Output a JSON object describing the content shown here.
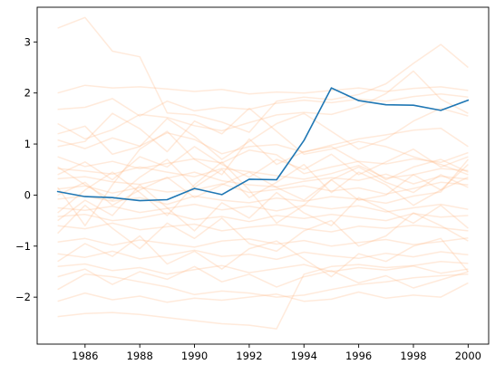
{
  "chart_data": {
    "type": "line",
    "title": "",
    "xlabel": "",
    "ylabel": "",
    "xlim": [
      1984.25,
      2000.75
    ],
    "ylim": [
      -2.92,
      3.68
    ],
    "xticks": [
      1986,
      1988,
      1990,
      1992,
      1994,
      1996,
      1998,
      2000
    ],
    "yticks": [
      -2,
      -1,
      0,
      1,
      2,
      3
    ],
    "grid": false,
    "x": [
      1985,
      1986,
      1987,
      1988,
      1989,
      1990,
      1991,
      1992,
      1993,
      1994,
      1995,
      1996,
      1997,
      1998,
      1999,
      2000
    ],
    "highlight_series": {
      "color": "#1f77b4",
      "values": [
        0.07,
        -0.03,
        -0.05,
        -0.11,
        -0.09,
        0.13,
        0.01,
        0.31,
        0.3,
        1.07,
        2.1,
        1.85,
        1.77,
        1.76,
        1.66,
        1.86
      ]
    },
    "background_series_color": "#ffbb88",
    "background_series": [
      [
        3.27,
        3.48,
        2.82,
        2.71,
        1.61,
        1.57,
        1.43,
        1.23,
        1.84,
        1.92,
        1.87,
        1.97,
        2.18,
        2.58,
        2.95,
        2.5
      ],
      [
        2.0,
        2.15,
        2.1,
        2.12,
        2.08,
        2.03,
        2.07,
        1.98,
        2.02,
        2.0,
        2.05,
        2.1,
        2.03,
        2.09,
        2.12,
        2.05
      ],
      [
        1.68,
        1.72,
        1.89,
        1.55,
        1.84,
        1.65,
        1.72,
        1.68,
        1.8,
        1.86,
        1.81,
        1.88,
        1.84,
        1.93,
        1.98,
        1.92
      ],
      [
        1.4,
        1.1,
        1.28,
        1.58,
        1.52,
        1.36,
        1.26,
        1.42,
        1.57,
        1.62,
        1.58,
        1.73,
        1.99,
        2.43,
        1.88,
        1.6
      ],
      [
        1.08,
        0.91,
        1.12,
        0.96,
        1.22,
        1.09,
        0.81,
        0.95,
        0.99,
        0.84,
        0.98,
        1.1,
        1.18,
        1.27,
        1.31,
        0.95
      ],
      [
        0.75,
        0.56,
        0.66,
        0.52,
        0.62,
        0.71,
        0.63,
        0.88,
        0.79,
        0.42,
        0.55,
        0.66,
        0.61,
        0.71,
        0.64,
        0.83
      ],
      [
        0.52,
        0.47,
        0.41,
        0.55,
        0.45,
        0.36,
        0.52,
        0.46,
        0.38,
        0.31,
        0.42,
        0.58,
        0.33,
        0.4,
        0.52,
        0.48
      ],
      [
        0.32,
        0.36,
        0.26,
        0.21,
        0.33,
        0.45,
        0.28,
        0.2,
        0.16,
        0.27,
        0.34,
        0.29,
        0.41,
        0.22,
        0.37,
        0.31
      ],
      [
        0.12,
        0.18,
        0.04,
        0.15,
        0.06,
        0.1,
        0.22,
        0.05,
        0.11,
        0.18,
        0.08,
        0.14,
        0.02,
        0.13,
        0.25,
        0.2
      ],
      [
        -0.08,
        -0.02,
        -0.12,
        -0.05,
        -0.18,
        -0.02,
        -0.1,
        -0.15,
        -0.06,
        -0.12,
        -0.03,
        -0.08,
        -0.16,
        -0.02,
        0.06,
        0.7
      ],
      [
        -0.25,
        -0.3,
        -0.22,
        -0.34,
        -0.26,
        -0.18,
        -0.29,
        -0.22,
        -0.31,
        -0.2,
        -0.27,
        -0.21,
        -0.33,
        -0.25,
        -0.18,
        -0.28
      ],
      [
        -0.42,
        -0.38,
        -0.5,
        -0.45,
        -0.35,
        -0.48,
        -0.42,
        -0.52,
        -0.4,
        -0.46,
        -0.38,
        -0.44,
        -0.5,
        -0.36,
        -0.43,
        -0.4
      ],
      [
        -0.6,
        -0.66,
        -0.55,
        -0.68,
        -0.62,
        -0.57,
        -0.7,
        -0.63,
        -0.58,
        -0.66,
        -0.72,
        -0.61,
        -0.65,
        -0.59,
        -0.64,
        -0.7
      ],
      [
        -0.92,
        -0.85,
        -0.98,
        -0.88,
        -0.95,
        -1.02,
        -0.9,
        -0.86,
        -0.96,
        -0.89,
        -1.0,
        -0.93,
        -0.87,
        -0.97,
        -0.91,
        -0.84
      ],
      [
        -1.15,
        -1.22,
        -1.1,
        -1.25,
        -1.18,
        -1.08,
        -1.2,
        -1.16,
        -1.26,
        -1.12,
        -1.19,
        -1.24,
        -1.14,
        -1.21,
        -1.11,
        -1.17
      ],
      [
        -1.4,
        -1.35,
        -1.48,
        -1.42,
        -1.55,
        -1.46,
        -1.38,
        -1.52,
        -1.44,
        -1.36,
        -1.5,
        -1.42,
        -1.47,
        -1.39,
        -1.53,
        -1.45
      ],
      [
        -1.85,
        -1.55,
        -1.6,
        -1.7,
        -1.8,
        -1.95,
        -1.88,
        -1.92,
        -2.0,
        -1.96,
        -1.85,
        -1.75,
        -1.7,
        -1.62,
        -1.58,
        -1.55
      ],
      [
        -2.08,
        -1.92,
        -2.05,
        -1.98,
        -2.1,
        -2.02,
        -2.06,
        -2.0,
        -1.94,
        -2.08,
        -2.04,
        -1.9,
        -2.02,
        -1.96,
        -2.0,
        -1.72
      ],
      [
        -2.38,
        -2.32,
        -2.3,
        -2.34,
        -2.4,
        -2.46,
        -2.52,
        -2.55,
        -2.62,
        -1.55,
        -1.4,
        -1.36,
        -1.42,
        -1.38,
        -1.3,
        -1.34
      ],
      [
        0.15,
        -0.6,
        0.2,
        0.9,
        1.25,
        0.7,
        0.4,
        1.1,
        0.6,
        0.85,
        0.95,
        0.65,
        0.3,
        0.55,
        0.7,
        0.45
      ],
      [
        -0.35,
        0.1,
        0.45,
        0.05,
        -0.4,
        0.2,
        0.65,
        0.1,
        -0.55,
        -0.2,
        0.3,
        -0.1,
        0.0,
        0.4,
        0.1,
        0.6
      ],
      [
        0.95,
        1.05,
        1.6,
        1.3,
        0.85,
        1.45,
        1.2,
        1.7,
        1.25,
        0.8,
        0.9,
        1.05,
        0.95,
        0.75,
        0.6,
        0.4
      ],
      [
        -0.75,
        -0.2,
        -0.65,
        -1.05,
        -0.55,
        -0.85,
        -0.45,
        -0.95,
        -1.1,
        -0.7,
        -0.5,
        -1.0,
        -0.8,
        -0.35,
        -0.6,
        -0.9
      ],
      [
        0.55,
        0.2,
        -0.1,
        0.35,
        0.7,
        0.15,
        0.5,
        -0.05,
        0.25,
        0.6,
        0.05,
        0.45,
        0.2,
        -0.2,
        0.1,
        0.35
      ],
      [
        -1.3,
        -0.95,
        -1.2,
        -0.8,
        -1.35,
        -1.1,
        -1.45,
        -1.05,
        -0.9,
        -1.25,
        -1.6,
        -1.15,
        -1.3,
        -1.0,
        -0.85,
        -1.5
      ],
      [
        1.2,
        1.35,
        0.8,
        0.95,
        1.5,
        1.15,
        0.7,
        1.05,
        1.4,
        1.6,
        1.25,
        0.9,
        1.1,
        1.45,
        1.7,
        1.55
      ],
      [
        -0.5,
        -0.1,
        -0.4,
        0.2,
        -0.25,
        -0.7,
        -0.15,
        -0.45,
        0.05,
        -0.35,
        -0.6,
        -0.05,
        -0.3,
        -0.55,
        -0.2,
        -0.65
      ],
      [
        0.4,
        0.65,
        0.3,
        0.75,
        0.55,
        0.95,
        0.6,
        0.35,
        0.7,
        0.5,
        0.8,
        0.4,
        0.65,
        0.9,
        0.55,
        0.75
      ],
      [
        -1.6,
        -1.45,
        -1.75,
        -1.5,
        -1.65,
        -1.4,
        -1.7,
        -1.55,
        -1.8,
        -1.6,
        -1.48,
        -1.72,
        -1.58,
        -1.82,
        -1.66,
        -1.5
      ],
      [
        0.0,
        0.25,
        -0.2,
        0.1,
        0.35,
        -0.05,
        0.2,
        0.45,
        0.15,
        -0.1,
        0.3,
        0.55,
        0.25,
        0.05,
        0.4,
        0.15
      ]
    ]
  }
}
